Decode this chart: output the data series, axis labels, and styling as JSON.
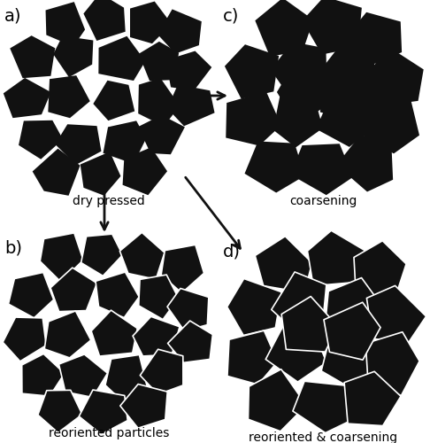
{
  "panel_labels": [
    "a)",
    "b)",
    "c)",
    "d)"
  ],
  "panel_titles": [
    "dry pressed",
    "reoriented particles",
    "coarsening",
    "reoriented & coarsening"
  ],
  "particle_color": "#111111",
  "background_color": "#ffffff",
  "arrow_color": "#111111",
  "figsize": [
    4.86,
    5.0
  ],
  "dpi": 100
}
